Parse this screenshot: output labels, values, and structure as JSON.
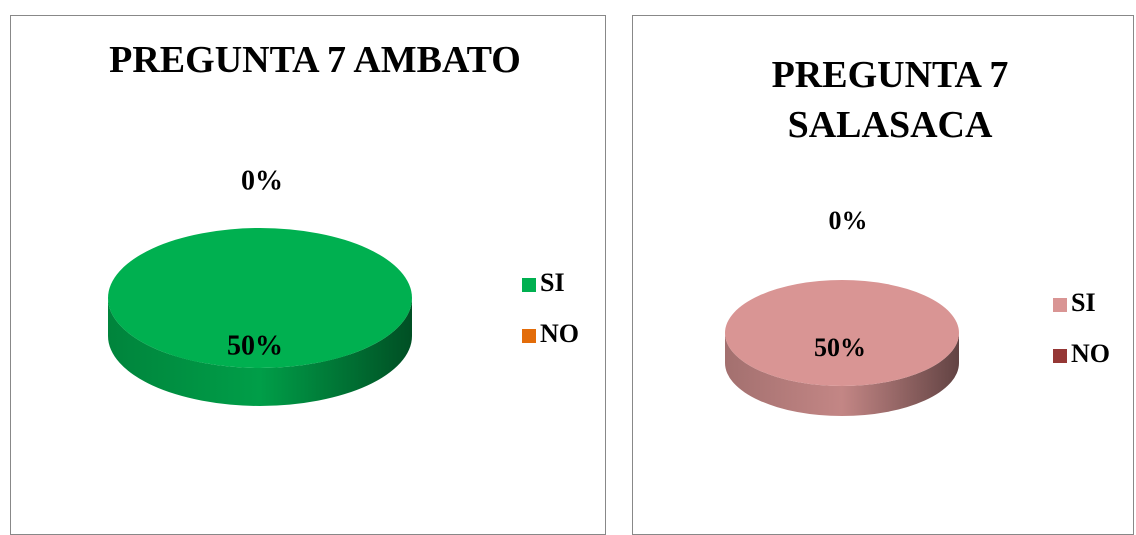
{
  "chart_data": [
    {
      "type": "pie3d",
      "title": "PREGUNTA 7 AMBATO",
      "categories": [
        "SI",
        "NO"
      ],
      "values": [
        50,
        0
      ],
      "value_labels": [
        "50%",
        "0%"
      ],
      "colors": [
        "#00b050",
        "#e36c09"
      ],
      "legend": "right"
    },
    {
      "type": "pie3d",
      "title": "PREGUNTA 7 SALASACA",
      "categories": [
        "SI",
        "NO"
      ],
      "values": [
        50,
        0
      ],
      "value_labels": [
        "50%",
        "0%"
      ],
      "colors": [
        "#d99594",
        "#953735"
      ],
      "legend": "right"
    }
  ]
}
